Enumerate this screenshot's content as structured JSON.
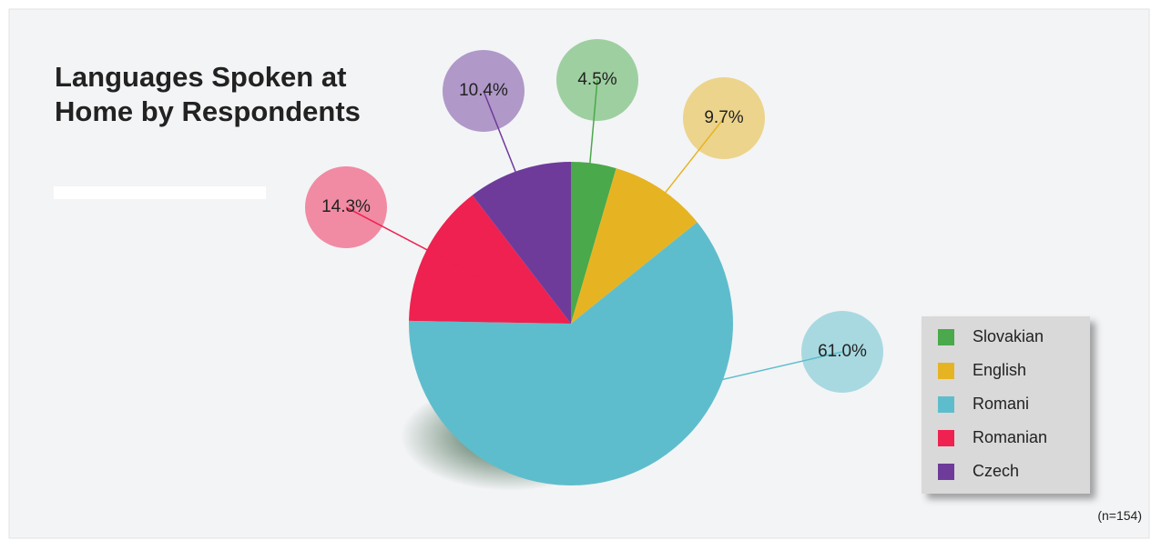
{
  "chart_data": {
    "type": "pie",
    "title": "Languages Spoken at Home by Respondents",
    "categories": [
      "Slovakian",
      "English",
      "Romani",
      "Romanian",
      "Czech"
    ],
    "values": [
      4.5,
      9.7,
      61.0,
      14.3,
      10.4
    ],
    "value_labels": [
      "4.5%",
      "9.7%",
      "61.0%",
      "14.3%",
      "10.4%"
    ],
    "colors": [
      "#4aa94a",
      "#e6b422",
      "#5ebdcc",
      "#ee2150",
      "#6e3b9a"
    ],
    "legend": "bottom-right",
    "annotation": "(n=154)"
  }
}
